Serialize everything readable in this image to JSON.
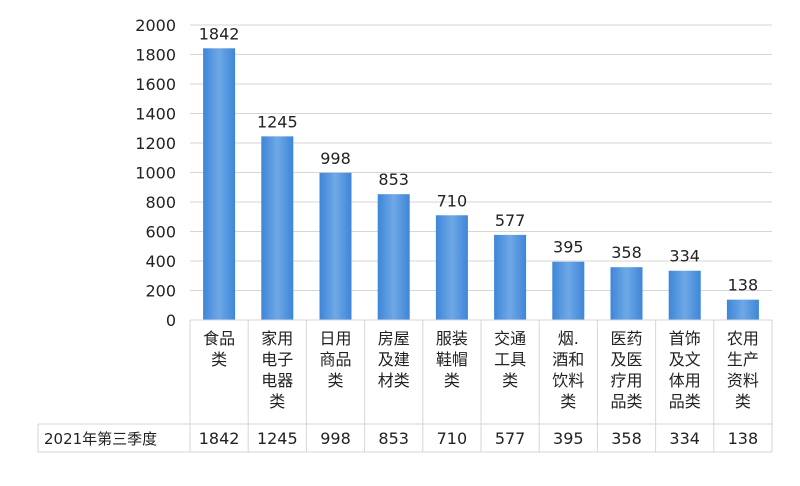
{
  "chart_data": {
    "type": "bar",
    "categories": [
      [
        "食品",
        "类"
      ],
      [
        "家用",
        "电子",
        "电器",
        "类"
      ],
      [
        "日用",
        "商品",
        "类"
      ],
      [
        "房屋",
        "及建",
        "材类"
      ],
      [
        "服装",
        "鞋帽",
        "类"
      ],
      [
        "交通",
        "工具",
        "类"
      ],
      [
        "烟.",
        "酒和",
        "饮料",
        "类"
      ],
      [
        "医药",
        "及医",
        "疗用",
        "品类"
      ],
      [
        "首饰",
        "及文",
        "体用",
        "品类"
      ],
      [
        "农用",
        "生产",
        "资料",
        "类"
      ]
    ],
    "series": [
      {
        "name": "2021年第三季度",
        "values": [
          1842,
          1245,
          998,
          853,
          710,
          577,
          395,
          358,
          334,
          138
        ]
      }
    ],
    "ylim": [
      0,
      2000
    ],
    "yticks": [
      0,
      200,
      400,
      600,
      800,
      1000,
      1200,
      1400,
      1600,
      1800,
      2000
    ],
    "grid": true,
    "data_labels": true,
    "data_table": true,
    "bar_color": "#3d86d8",
    "bar_color_light": "#6fa8e6"
  }
}
